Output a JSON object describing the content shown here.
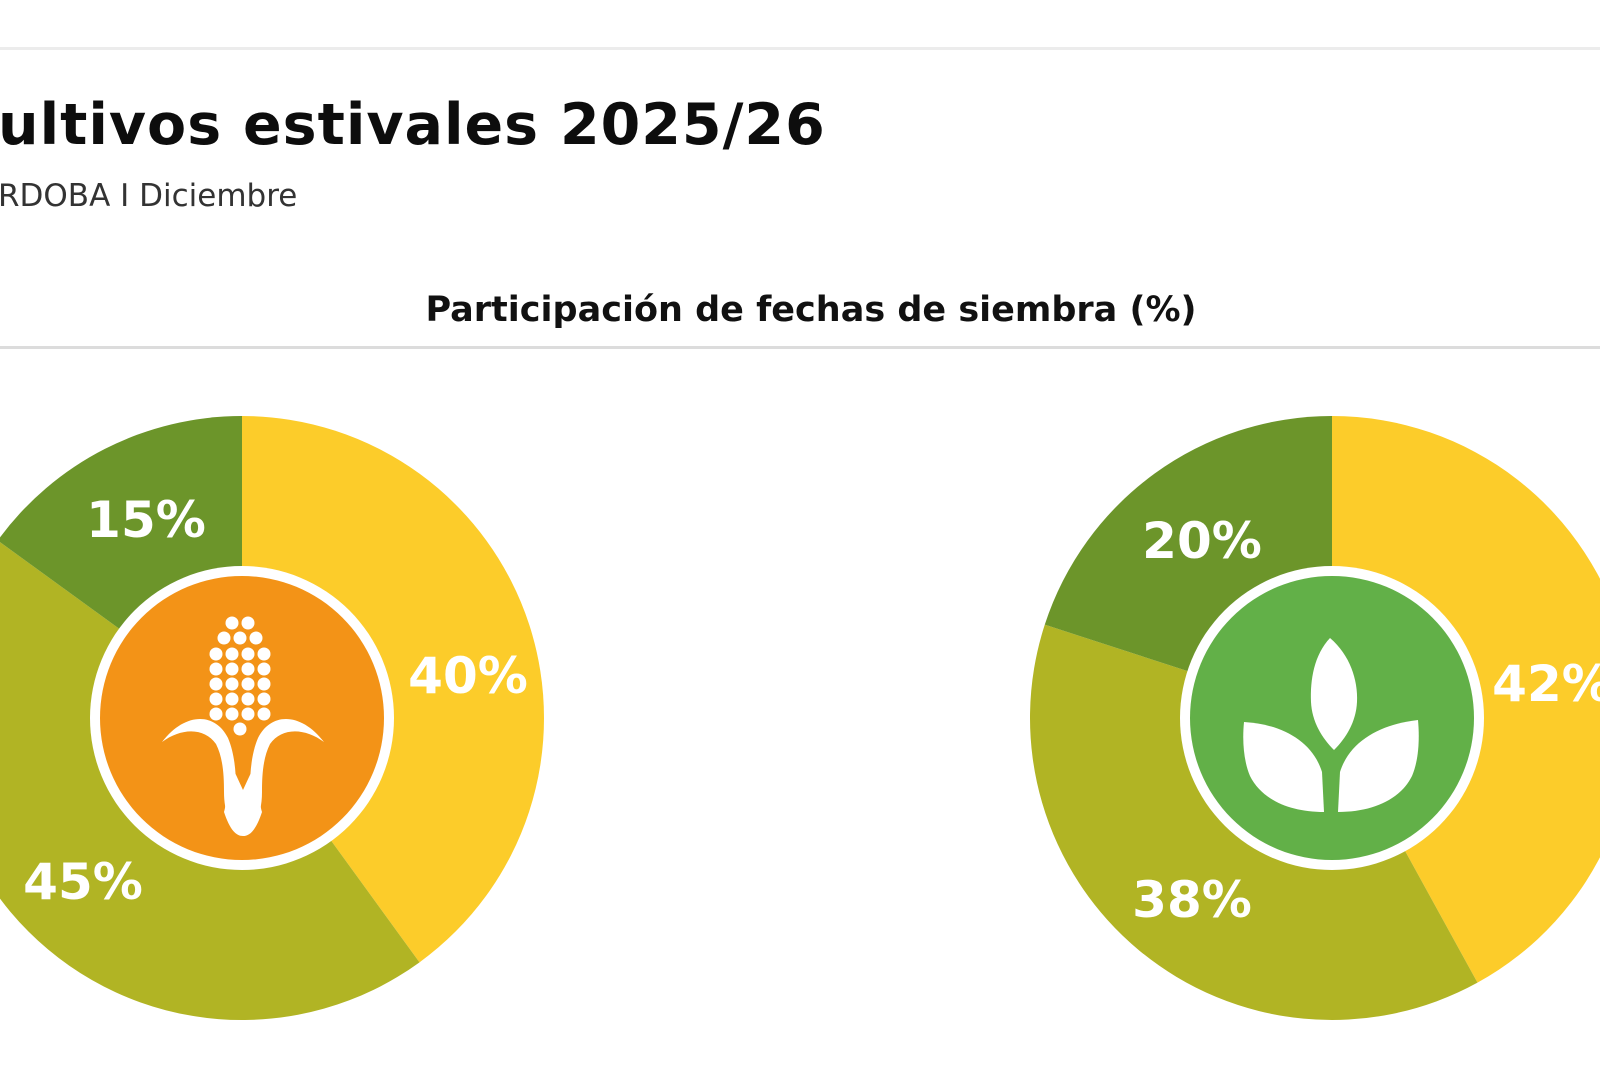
{
  "header": {
    "title": "ultivos estivales 2025/26",
    "subtitle": "RDOBA I Diciembre"
  },
  "chart_heading": "Participación de fechas de siembra (%)",
  "colors": {
    "yellow": "#fccc2a",
    "olive": "#b1b424",
    "dark_green": "#6c952a",
    "corn_badge": "#f39317",
    "leaf_badge": "#62b048",
    "ring": "#ffffff",
    "rule_top": "#ececec",
    "rule_mid": "#dcdcdc"
  },
  "pies": [
    {
      "name": "maiz",
      "icon": "corn-icon",
      "slices": [
        {
          "label": "40%",
          "value": 40,
          "color": "yellow"
        },
        {
          "label": "45%",
          "value": 45,
          "color": "olive"
        },
        {
          "label": "15%",
          "value": 15,
          "color": "dark_green"
        }
      ]
    },
    {
      "name": "soja",
      "icon": "leaf-sprout-icon",
      "slices": [
        {
          "label": "42%",
          "value": 42,
          "color": "yellow"
        },
        {
          "label": "38%",
          "value": 38,
          "color": "olive"
        },
        {
          "label": "20%",
          "value": 20,
          "color": "dark_green"
        }
      ]
    }
  ],
  "chart_data": [
    {
      "type": "pie",
      "title": "Participación de fechas de siembra (%)",
      "series_name": "Maíz",
      "categories": [
        "Segment 1 (yellow)",
        "Segment 2 (olive)",
        "Segment 3 (dark green)"
      ],
      "values": [
        40,
        45,
        15
      ],
      "labels": [
        "40%",
        "45%",
        "15%"
      ],
      "donut": true,
      "center_icon": "corn"
    },
    {
      "type": "pie",
      "title": "Participación de fechas de siembra (%)",
      "series_name": "Soja",
      "categories": [
        "Segment 1 (yellow)",
        "Segment 2 (olive)",
        "Segment 3 (dark green)"
      ],
      "values": [
        42,
        38,
        20
      ],
      "labels": [
        "42%",
        "38%",
        "20%"
      ],
      "donut": true,
      "center_icon": "leaf sprout"
    }
  ]
}
